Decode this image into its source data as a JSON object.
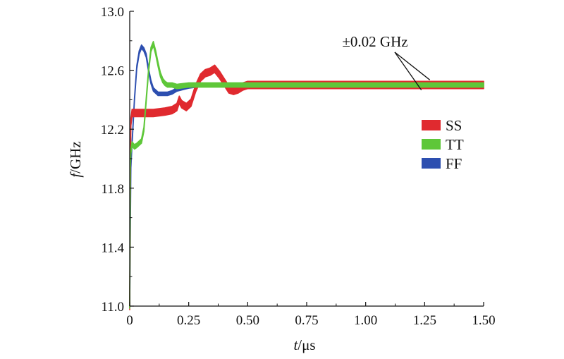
{
  "chart_data": {
    "type": "line",
    "xlabel_var": "t",
    "xlabel_unit": "/μs",
    "ylabel_var": "f",
    "ylabel_unit": "/GHz",
    "xlim": [
      0,
      1.5
    ],
    "ylim": [
      11.0,
      13.0
    ],
    "x_ticks": [
      {
        "value": 0,
        "label": "0"
      },
      {
        "value": 0.25,
        "label": "0.25"
      },
      {
        "value": 0.5,
        "label": "0.50"
      },
      {
        "value": 0.75,
        "label": "0.75"
      },
      {
        "value": 1.0,
        "label": "1.00"
      },
      {
        "value": 1.25,
        "label": "1.25"
      },
      {
        "value": 1.5,
        "label": "1.50"
      }
    ],
    "y_ticks": [
      {
        "value": 11.0,
        "label": "11.0"
      },
      {
        "value": 11.4,
        "label": "11.4"
      },
      {
        "value": 11.8,
        "label": "11.8"
      },
      {
        "value": 12.2,
        "label": "12.2"
      },
      {
        "value": 12.6,
        "label": "12.6"
      },
      {
        "value": 13.0,
        "label": "13.0"
      }
    ],
    "grid": false,
    "legend_position": "right",
    "annotation": {
      "text": "±0.02 GHz",
      "band_center": 12.5,
      "band_halfwidth": 0.02
    },
    "series": [
      {
        "name": "SS",
        "color": "#e02a2f",
        "band": 0.025,
        "x": [
          0,
          0.003,
          0.005,
          0.01,
          0.02,
          0.05,
          0.1,
          0.15,
          0.18,
          0.2,
          0.21,
          0.22,
          0.24,
          0.26,
          0.28,
          0.3,
          0.32,
          0.34,
          0.36,
          0.38,
          0.4,
          0.42,
          0.44,
          0.46,
          0.48,
          0.5,
          0.55,
          0.6,
          0.8,
          1.0,
          1.2,
          1.5
        ],
        "y": [
          11.0,
          11.85,
          12.25,
          12.31,
          12.31,
          12.31,
          12.31,
          12.32,
          12.33,
          12.35,
          12.4,
          12.37,
          12.35,
          12.38,
          12.48,
          12.55,
          12.58,
          12.59,
          12.61,
          12.57,
          12.52,
          12.47,
          12.46,
          12.47,
          12.49,
          12.5,
          12.5,
          12.5,
          12.5,
          12.5,
          12.5,
          12.5
        ]
      },
      {
        "name": "TT",
        "color": "#5ec739",
        "band": 0.015,
        "x": [
          0,
          0.003,
          0.005,
          0.01,
          0.02,
          0.03,
          0.05,
          0.06,
          0.07,
          0.08,
          0.09,
          0.1,
          0.11,
          0.12,
          0.13,
          0.14,
          0.15,
          0.16,
          0.18,
          0.2,
          0.25,
          0.3,
          0.4,
          0.5,
          0.7,
          1.0,
          1.25,
          1.5
        ],
        "y": [
          11.0,
          11.95,
          12.05,
          12.1,
          12.08,
          12.09,
          12.12,
          12.2,
          12.4,
          12.6,
          12.74,
          12.78,
          12.72,
          12.64,
          12.57,
          12.53,
          12.51,
          12.5,
          12.5,
          12.49,
          12.5,
          12.5,
          12.5,
          12.5,
          12.5,
          12.5,
          12.5,
          12.5
        ]
      },
      {
        "name": "FF",
        "color": "#2d4fb0",
        "band": 0.012,
        "x": [
          0,
          0.005,
          0.01,
          0.02,
          0.03,
          0.04,
          0.05,
          0.06,
          0.07,
          0.08,
          0.09,
          0.1,
          0.12,
          0.14,
          0.16,
          0.18,
          0.2,
          0.25,
          0.3,
          0.35,
          0.4,
          0.45,
          0.5
        ],
        "y": [
          11.0,
          11.95,
          12.1,
          12.4,
          12.62,
          12.72,
          12.76,
          12.74,
          12.7,
          12.6,
          12.52,
          12.47,
          12.44,
          12.44,
          12.44,
          12.45,
          12.47,
          12.49,
          12.5,
          12.5,
          12.5,
          12.5,
          12.5
        ]
      }
    ]
  }
}
